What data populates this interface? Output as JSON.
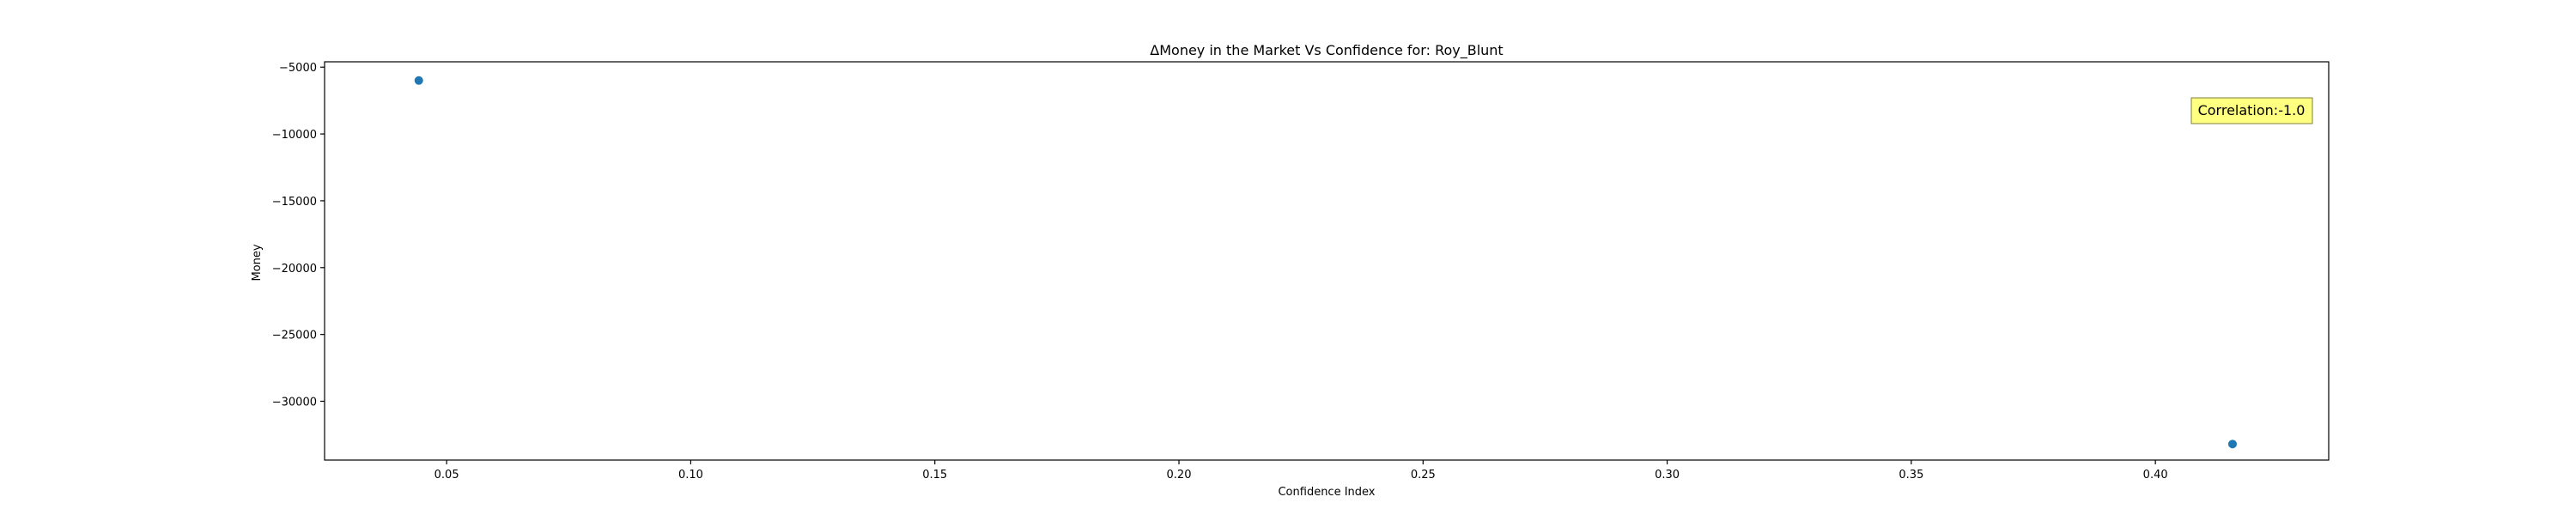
{
  "chart_data": {
    "type": "scatter",
    "title": "ΔMoney in the Market Vs Confidence for: Roy_Blunt",
    "xlabel": "Confidence Index",
    "ylabel": "Money",
    "xlim": [
      0.025,
      0.4355
    ],
    "ylim": [
      -34400,
      -4600
    ],
    "xticks": [
      0.05,
      0.1,
      0.15,
      0.2,
      0.25,
      0.3,
      0.35,
      0.4
    ],
    "xtick_labels": [
      "0.05",
      "0.10",
      "0.15",
      "0.20",
      "0.25",
      "0.30",
      "0.35",
      "0.40"
    ],
    "yticks": [
      -5000,
      -10000,
      -15000,
      -20000,
      -25000,
      -30000
    ],
    "ytick_labels": [
      "−5000",
      "−10000",
      "−15000",
      "−20000",
      "−25000",
      "−30000"
    ],
    "points": [
      {
        "x": 0.0443,
        "y": -6000
      },
      {
        "x": 0.4158,
        "y": -33200
      }
    ],
    "marker_color": "#1f77b4",
    "grid": false,
    "annotation": {
      "text": "Correlation:-1.0",
      "placement": "top-right",
      "background": "#ffff80"
    }
  }
}
